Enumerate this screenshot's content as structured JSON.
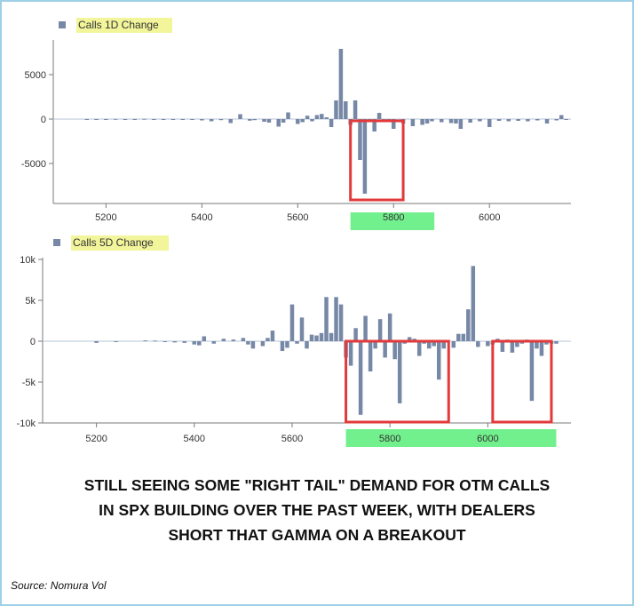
{
  "chart_data": [
    {
      "type": "bar",
      "legend": "Calls 1D Change",
      "legend_position": "top-left",
      "xlim": [
        5090,
        6170
      ],
      "ylim": [
        -8800,
        8800
      ],
      "xticks": [
        5200,
        5400,
        5600,
        5800,
        6000
      ],
      "xtick_labels": [
        "5200",
        "5400",
        "5600",
        "5800",
        "6000"
      ],
      "yticks": [
        5000,
        0,
        -5000
      ],
      "ytick_labels": [
        "5000",
        "0",
        "-5000"
      ],
      "highlight_range": [
        5710,
        5885
      ],
      "callout_ranges": [
        [
          5710,
          5820
        ]
      ],
      "grid": false,
      "x": [
        5160,
        5180,
        5200,
        5220,
        5240,
        5260,
        5280,
        5300,
        5320,
        5340,
        5360,
        5380,
        5400,
        5420,
        5440,
        5460,
        5480,
        5500,
        5510,
        5530,
        5540,
        5560,
        5570,
        5580,
        5600,
        5610,
        5620,
        5630,
        5640,
        5650,
        5660,
        5670,
        5680,
        5690,
        5700,
        5710,
        5720,
        5730,
        5740,
        5750,
        5760,
        5770,
        5780,
        5790,
        5800,
        5820,
        5840,
        5860,
        5870,
        5880,
        5900,
        5920,
        5930,
        5940,
        5960,
        5980,
        6000,
        6020,
        6040,
        6060,
        6080,
        6100,
        6120,
        6140,
        6150,
        6160
      ],
      "values": [
        -20,
        -30,
        -40,
        20,
        -30,
        -50,
        30,
        -40,
        -60,
        -50,
        -30,
        -90,
        -150,
        -250,
        -120,
        -450,
        550,
        -180,
        -120,
        -300,
        -400,
        -850,
        -400,
        750,
        -550,
        -350,
        380,
        -250,
        450,
        580,
        200,
        -900,
        2100,
        7900,
        2000,
        -650,
        2100,
        -4600,
        -8400,
        -300,
        -1400,
        700,
        -250,
        -250,
        -1100,
        -500,
        -800,
        -650,
        -500,
        -250,
        -350,
        -450,
        -500,
        -1100,
        -400,
        -250,
        -900,
        -200,
        -250,
        -200,
        -250,
        -150,
        -500,
        -150,
        450,
        -100
      ]
    },
    {
      "type": "bar",
      "legend": "Calls 5D Change",
      "legend_position": "top-left",
      "xlim": [
        5090,
        6170
      ],
      "ylim": [
        -10000,
        10000
      ],
      "xticks": [
        5200,
        5400,
        5600,
        5800,
        6000
      ],
      "xtick_labels": [
        "5200",
        "5400",
        "5600",
        "5800",
        "6000"
      ],
      "yticks": [
        10000,
        5000,
        0,
        -5000,
        -10000
      ],
      "ytick_labels": [
        "10k",
        "5k",
        "0",
        "-5k",
        "-10k"
      ],
      "highlight_range": [
        5710,
        6140
      ],
      "callout_ranges": [
        [
          5710,
          5920
        ],
        [
          6010,
          6130
        ]
      ],
      "grid": false,
      "x": [
        5200,
        5240,
        5300,
        5320,
        5340,
        5360,
        5380,
        5400,
        5410,
        5420,
        5440,
        5460,
        5480,
        5500,
        5510,
        5520,
        5540,
        5550,
        5560,
        5580,
        5590,
        5600,
        5610,
        5620,
        5630,
        5640,
        5650,
        5660,
        5670,
        5680,
        5690,
        5700,
        5710,
        5720,
        5730,
        5740,
        5750,
        5760,
        5770,
        5780,
        5790,
        5800,
        5810,
        5820,
        5830,
        5840,
        5850,
        5860,
        5870,
        5880,
        5890,
        5900,
        5910,
        5930,
        5940,
        5950,
        5960,
        5970,
        5980,
        6000,
        6010,
        6020,
        6030,
        6040,
        6050,
        6060,
        6070,
        6080,
        6090,
        6100,
        6110,
        6120,
        6130,
        6140
      ],
      "values": [
        -200,
        -100,
        100,
        80,
        -100,
        -150,
        -200,
        -400,
        -500,
        600,
        -300,
        300,
        200,
        400,
        -400,
        -900,
        -600,
        400,
        1300,
        -1200,
        -800,
        4500,
        -300,
        2900,
        -900,
        800,
        700,
        1000,
        5400,
        1000,
        5400,
        4500,
        -2000,
        -3000,
        1600,
        -9000,
        3100,
        -3700,
        -900,
        2700,
        -2000,
        3400,
        -2200,
        -7600,
        -300,
        500,
        300,
        -1800,
        -300,
        -900,
        -600,
        -4700,
        -900,
        -800,
        900,
        900,
        3900,
        9200,
        -700,
        -600,
        -400,
        300,
        -1300,
        200,
        -1400,
        -700,
        -300,
        200,
        -7300,
        -900,
        -1800,
        -400,
        -300,
        -300
      ]
    }
  ],
  "caption": {
    "line1": "STILL SEEING SOME \"RIGHT TAIL\" DEMAND FOR OTM CALLS",
    "line2": "IN SPX BUILDING OVER THE PAST WEEK, WITH DEALERS",
    "line3": "SHORT THAT GAMMA ON A BREAKOUT"
  },
  "source": "Source: Nomura Vol",
  "colors": {
    "bar": "#7788a6",
    "legend_highlight": "#f2f59a",
    "range_highlight": "#73f08e",
    "callout": "#e23a3a",
    "frame": "#9ed1e8"
  }
}
